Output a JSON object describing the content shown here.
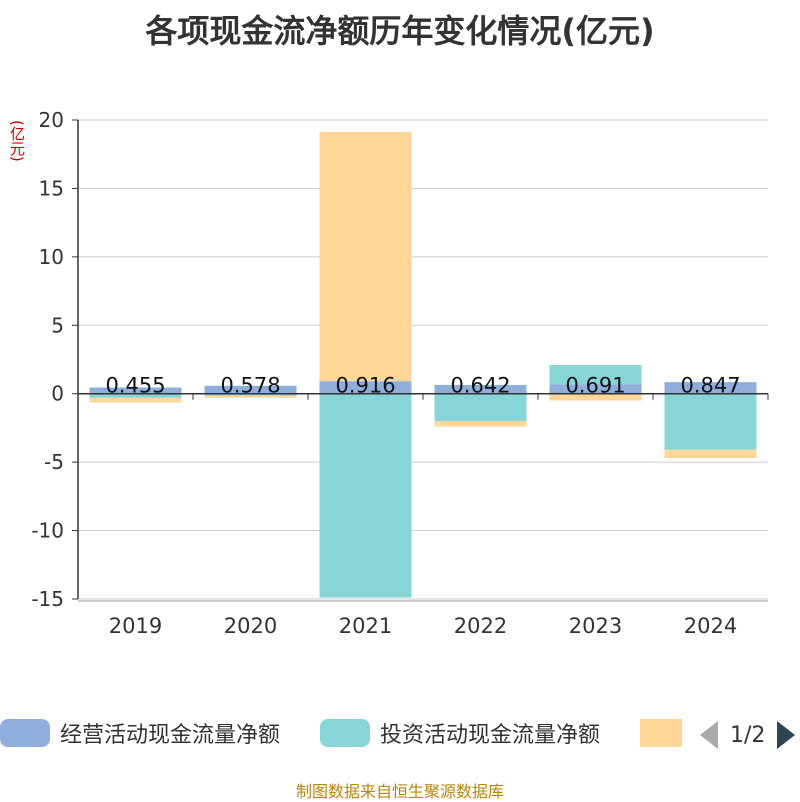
{
  "title": "各项现金流净额历年变化情况(亿元)",
  "unit_label": "(亿元)",
  "legend": {
    "items": [
      {
        "label": "经营活动现金流量净额",
        "color": "#8eaedb"
      },
      {
        "label": "投资活动现金流量净额",
        "color": "#88d5d8"
      },
      {
        "label": "",
        "color": "#fdd698"
      }
    ],
    "page_text": "1/2"
  },
  "source": "制图数据来自恒生聚源数据库",
  "chart_data": {
    "type": "bar",
    "stacked": true,
    "title": "各项现金流净额历年变化情况(亿元)",
    "ylabel": "(亿元)",
    "categories": [
      "2019",
      "2020",
      "2021",
      "2022",
      "2023",
      "2024"
    ],
    "ylim": [
      -15,
      20
    ],
    "yticks": [
      -15,
      -10,
      -5,
      0,
      5,
      10,
      15,
      20
    ],
    "grid": true,
    "legend_position": "bottom",
    "series": [
      {
        "name": "经营活动现金流量净额",
        "color": "#8eaedb",
        "values": [
          0.455,
          0.578,
          0.916,
          0.642,
          0.691,
          0.847
        ],
        "data_labels": [
          "0.455",
          "0.578",
          "0.916",
          "0.642",
          "0.691",
          "0.847"
        ]
      },
      {
        "name": "投资活动现金流量净额",
        "color": "#88d5d8",
        "values": [
          -0.3,
          -0.15,
          -14.9,
          -2.0,
          1.4,
          -4.1
        ]
      },
      {
        "color": "#fdd698",
        "values": [
          -0.35,
          -0.15,
          18.2,
          -0.4,
          -0.5,
          -0.6
        ]
      }
    ]
  }
}
